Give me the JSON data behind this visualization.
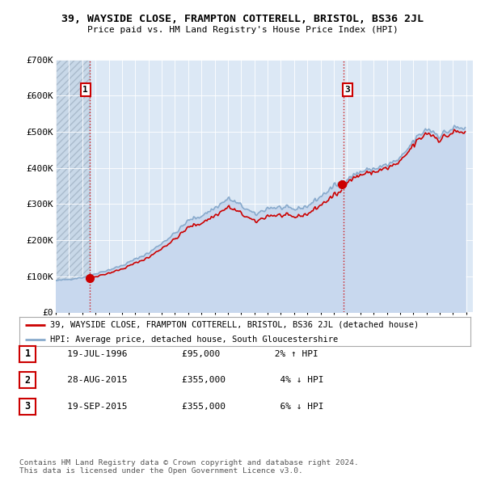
{
  "title": "39, WAYSIDE CLOSE, FRAMPTON COTTERELL, BRISTOL, BS36 2JL",
  "subtitle": "Price paid vs. HM Land Registry's House Price Index (HPI)",
  "legend_label_red": "39, WAYSIDE CLOSE, FRAMPTON COTTERELL, BRISTOL, BS36 2JL (detached house)",
  "legend_label_blue": "HPI: Average price, detached house, South Gloucestershire",
  "footer": "Contains HM Land Registry data © Crown copyright and database right 2024.\nThis data is licensed under the Open Government Licence v3.0.",
  "table_rows": [
    {
      "num": "1",
      "date": "19-JUL-1996",
      "price": "£95,000",
      "hpi": "2% ↑ HPI"
    },
    {
      "num": "2",
      "date": "28-AUG-2015",
      "price": "£355,000",
      "hpi": "4% ↓ HPI"
    },
    {
      "num": "3",
      "date": "19-SEP-2015",
      "price": "£355,000",
      "hpi": "6% ↓ HPI"
    }
  ],
  "ylim": [
    0,
    700000
  ],
  "yticks": [
    0,
    100000,
    200000,
    300000,
    400000,
    500000,
    600000,
    700000
  ],
  "ytick_labels": [
    "£0",
    "£100K",
    "£200K",
    "£300K",
    "£400K",
    "£500K",
    "£600K",
    "£700K"
  ],
  "xlim_start": 1994.0,
  "xlim_end": 2025.5,
  "bg_color": "#dce8f5",
  "hatch_bg_color": "#c8d8e8",
  "grid_color": "#ffffff",
  "red_color": "#cc0000",
  "blue_color": "#88aacc",
  "blue_fill_color": "#c8d8ee",
  "sale1_x": 1996.54,
  "sale1_y": 95000,
  "sale2_x": 2015.64,
  "sale2_y": 355000,
  "sale3_x": 2015.72,
  "sale3_y": 355000,
  "annotation_1_label": "1",
  "annotation_3_label": "3"
}
